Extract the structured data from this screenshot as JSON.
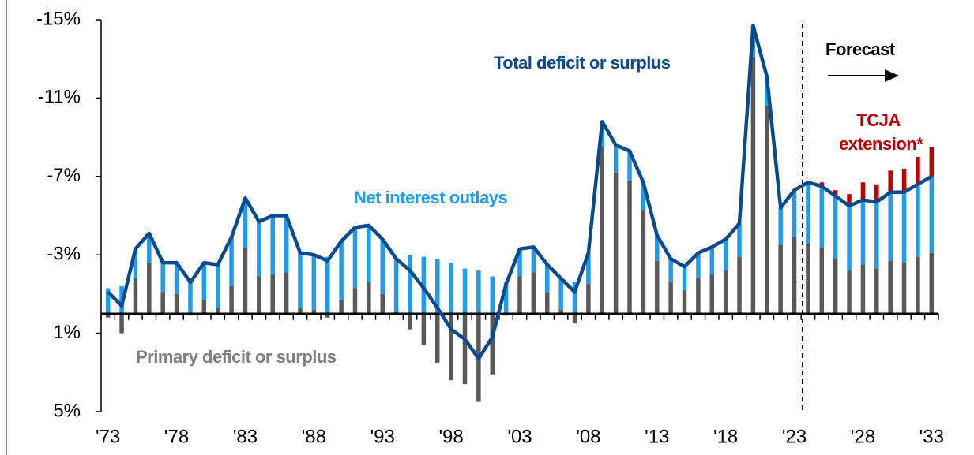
{
  "chart_data": {
    "type": "bar",
    "categories": [
      "'73",
      null,
      null,
      null,
      null,
      "'78",
      null,
      null,
      null,
      null,
      "'83",
      null,
      null,
      null,
      null,
      "'88",
      null,
      null,
      null,
      null,
      "'93",
      null,
      null,
      null,
      null,
      "'98",
      null,
      null,
      null,
      null,
      "'03",
      null,
      null,
      null,
      null,
      "'08",
      null,
      null,
      null,
      null,
      "'13",
      null,
      null,
      null,
      null,
      "'18",
      null,
      null,
      null,
      null,
      "'23",
      null,
      null,
      null,
      null,
      "'28",
      null,
      null,
      null,
      null,
      "'33"
    ],
    "series": [
      {
        "name": "Primary deficit or surplus",
        "type": "bar",
        "color": "#595959",
        "label_color": "#7f7f7f",
        "values": [
          0.2,
          1.0,
          -1.8,
          -2.6,
          -1.1,
          -1.0,
          0.1,
          -0.7,
          -0.3,
          -1.4,
          -3.4,
          -1.9,
          -2.0,
          -2.1,
          -0.3,
          -0.2,
          0.2,
          -0.7,
          -1.3,
          -1.6,
          -1.0,
          -0.1,
          0.8,
          1.6,
          2.5,
          3.4,
          3.6,
          4.5,
          3.1,
          0.1,
          -1.9,
          -2.1,
          -1.1,
          -0.2,
          0.5,
          -1.5,
          -8.5,
          -7.2,
          -6.8,
          -5.3,
          -2.7,
          -1.6,
          -1.2,
          -1.8,
          -2.0,
          -2.2,
          -2.9,
          -13.1,
          -10.6,
          -3.5,
          -3.9,
          -3.6,
          -3.4,
          -2.8,
          -2.2,
          -2.5,
          -2.3,
          -2.7,
          -2.6,
          -2.9,
          -3.1
        ]
      },
      {
        "name": "Net interest outlays",
        "type": "bar",
        "color": "#1f9bef",
        "label_color": "#1f9bef",
        "values": [
          -1.3,
          -1.4,
          -1.5,
          -1.5,
          -1.5,
          -1.6,
          -1.7,
          -1.9,
          -2.2,
          -2.5,
          -2.5,
          -2.8,
          -3.0,
          -2.9,
          -2.8,
          -2.8,
          -2.9,
          -3.0,
          -3.1,
          -2.9,
          -2.8,
          -2.7,
          -3.0,
          -2.9,
          -2.8,
          -2.6,
          -2.3,
          -2.2,
          -1.9,
          -1.6,
          -1.4,
          -1.3,
          -1.4,
          -1.6,
          -1.6,
          -1.6,
          -1.3,
          -1.4,
          -1.5,
          -1.4,
          -1.3,
          -1.2,
          -1.2,
          -1.3,
          -1.4,
          -1.6,
          -1.7,
          -1.6,
          -1.5,
          -1.9,
          -2.4,
          -3.1,
          -3.1,
          -3.2,
          -3.3,
          -3.3,
          -3.4,
          -3.5,
          -3.6,
          -3.7,
          -3.9
        ]
      },
      {
        "name": "TCJA extension*",
        "type": "bar",
        "color": "#c00000",
        "label_color": "#c00000",
        "values": [
          null,
          null,
          null,
          null,
          null,
          null,
          null,
          null,
          null,
          null,
          null,
          null,
          null,
          null,
          null,
          null,
          null,
          null,
          null,
          null,
          null,
          null,
          null,
          null,
          null,
          null,
          null,
          null,
          null,
          null,
          null,
          null,
          null,
          null,
          null,
          null,
          null,
          null,
          null,
          null,
          null,
          null,
          null,
          null,
          null,
          null,
          null,
          null,
          null,
          null,
          null,
          null,
          -0.2,
          -0.3,
          -0.6,
          -0.9,
          -0.9,
          -1.1,
          -1.2,
          -1.4,
          -1.5
        ]
      },
      {
        "name": "Total  deficit or surplus",
        "type": "line",
        "color": "#0b4a8c",
        "label_color": "#0b4a8c",
        "values": [
          -1.1,
          -0.4,
          -3.3,
          -4.1,
          -2.6,
          -2.6,
          -1.6,
          -2.6,
          -2.5,
          -3.9,
          -5.9,
          -4.7,
          -5.0,
          -5.0,
          -3.1,
          -3.0,
          -2.7,
          -3.7,
          -4.4,
          -4.5,
          -3.8,
          -2.8,
          -2.2,
          -1.3,
          -0.3,
          0.8,
          1.3,
          2.3,
          1.2,
          -1.5,
          -3.3,
          -3.4,
          -2.5,
          -1.8,
          -1.1,
          -3.1,
          -9.8,
          -8.6,
          -8.3,
          -6.7,
          -4.0,
          -2.8,
          -2.4,
          -3.1,
          -3.4,
          -3.8,
          -4.6,
          -14.7,
          -12.1,
          -5.4,
          -6.3,
          -6.7,
          -6.5,
          -6.0,
          -5.5,
          -5.8,
          -5.7,
          -6.2,
          -6.2,
          -6.6,
          -7.0
        ]
      }
    ],
    "ylim": [
      -15,
      5
    ],
    "inverted_y": true,
    "yticks": [
      {
        "value": -15,
        "label": "-15%"
      },
      {
        "value": -11,
        "label": "-11%"
      },
      {
        "value": -7,
        "label": "-7%"
      },
      {
        "value": -3,
        "label": "-3%"
      },
      {
        "value": 1,
        "label": "1%"
      },
      {
        "value": 5,
        "label": "5%"
      }
    ],
    "forecast_label": "Forecast"
  }
}
